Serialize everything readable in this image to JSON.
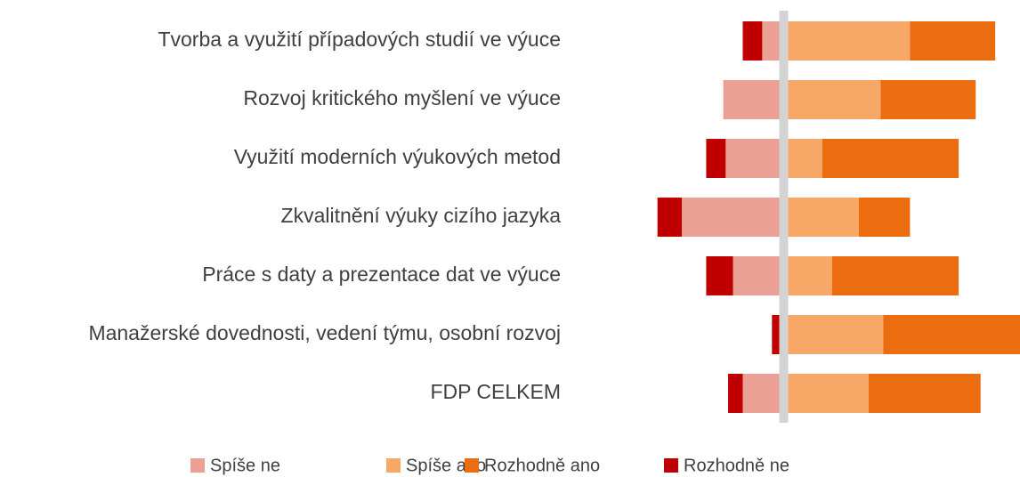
{
  "chart_data": {
    "type": "bar",
    "orientation": "horizontal",
    "stacked": true,
    "categories": [
      "Tvorba a využití případových studií ve výuce",
      "Rozvoj kritického myšlení ve výuce",
      "Využití moderních výukových metod",
      "Zkvalitnění výuky cizího jazyka",
      "Práce s daty a prezentace dat ve výuce",
      "Manažerské dovednosti, vedení týmu, osobní rozvoj",
      "FDP CELKEM"
    ],
    "series": [
      {
        "name": "Spíše ne",
        "color": "#eba096",
        "values": [
          -7,
          -23,
          -22,
          -40,
          -19,
          0,
          -15
        ]
      },
      {
        "name": "Spíše ano",
        "color": "#f8a866",
        "values": [
          50,
          38,
          14,
          29,
          18,
          39,
          33
        ]
      },
      {
        "name": "Rozhodně ano",
        "color": "#ec6c10",
        "values": [
          35,
          39,
          56,
          21,
          52,
          58,
          46
        ]
      },
      {
        "name": "Rozhodně ne",
        "color": "#c00000",
        "values": [
          -8,
          0,
          -8,
          -10,
          -11,
          -3,
          -6
        ]
      }
    ],
    "xlim": [
      -55,
      97
    ],
    "legend": "bottom"
  }
}
